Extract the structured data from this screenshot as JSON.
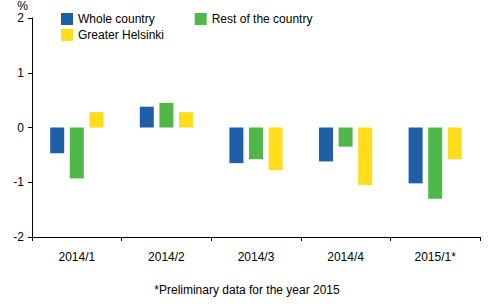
{
  "chart_data": {
    "type": "bar",
    "ylabel": "%",
    "annotations": [
      "*Preliminary data for the year 2015"
    ],
    "categories": [
      "2014/1",
      "2014/2",
      "2014/3",
      "2014/4",
      "2015/1*"
    ],
    "series": [
      {
        "name": "Whole country",
        "color": "#1f5fa8",
        "values": [
          -0.47,
          0.38,
          -0.65,
          -0.62,
          -1.02
        ]
      },
      {
        "name": "Rest of the country",
        "color": "#4fb848",
        "values": [
          -0.93,
          0.45,
          -0.58,
          -0.35,
          -1.3
        ]
      },
      {
        "name": "Greater Helsinki",
        "color": "#ffdd1a",
        "values": [
          0.28,
          0.28,
          -0.78,
          -1.05,
          -0.58
        ]
      }
    ],
    "ylim": [
      -2,
      2
    ],
    "yticks": [
      -2,
      -1,
      0,
      1,
      2
    ],
    "grid": false,
    "legend": "top-left"
  }
}
